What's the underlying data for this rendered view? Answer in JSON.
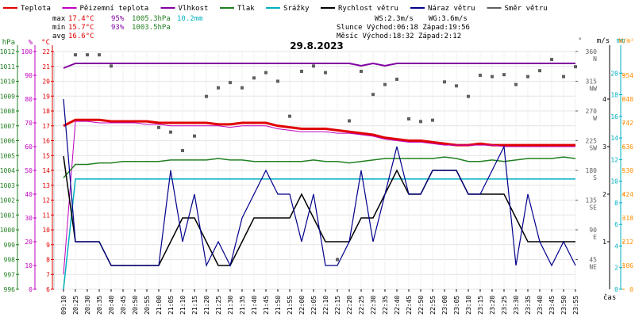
{
  "chart_data": {
    "type": "line",
    "title": "29.8.2023",
    "legend": [
      {
        "label": "Teplota",
        "color": "#e00000"
      },
      {
        "label": "Pěizemní teplota",
        "color": "#c000c0"
      },
      {
        "label": "Vlhkost",
        "color": "#8000a0"
      },
      {
        "label": "Tlak",
        "color": "#208020"
      },
      {
        "label": "Srážky",
        "color": "#00b0c0"
      },
      {
        "label": "Rychlost větru",
        "color": "#000000"
      },
      {
        "label": "Náraz větru",
        "color": "#00008b"
      },
      {
        "label": "Směr větru",
        "color": "#606060"
      }
    ],
    "stats": {
      "max": {
        "label": "max",
        "temp": "17.4°C",
        "hum": "95%",
        "press": "1005.3hPa",
        "rain": "10.2mm"
      },
      "min": {
        "label": "min",
        "temp": "15.7°C",
        "hum": "93%",
        "press": "1003.5hPa"
      },
      "avg": {
        "label": "avg",
        "temp": "16.6°C"
      },
      "ws": "WS:2.3m/s",
      "wg": "WG:3.6m/s",
      "sun": "Slunce Východ:06:18  Západ:19:56",
      "moon": "Měsíc  Východ:18:32  Západ:2:12"
    },
    "x_labels": [
      "09:10",
      "20:25",
      "20:30",
      "20:35",
      "20:40",
      "20:45",
      "20:50",
      "20:55",
      "21:00",
      "21:05",
      "21:10",
      "21:15",
      "21:20",
      "21:25",
      "21:30",
      "21:35",
      "21:40",
      "21:45",
      "21:50",
      "21:55",
      "22:00",
      "22:05",
      "22:10",
      "22:15",
      "22:20",
      "22:25",
      "22:30",
      "22:35",
      "22:40",
      "22:45",
      "22:50",
      "22:55",
      "23:00",
      "23:05",
      "23:10",
      "23:15",
      "23:20",
      "23:25",
      "23:30",
      "23:35",
      "23:40",
      "23:45",
      "23:50",
      "23:55"
    ],
    "x_axis_label": "čas",
    "axes": {
      "hpa": {
        "title": "hPa",
        "ticks": [
          "996",
          "997",
          "998",
          "999",
          "1000",
          "1001",
          "1002",
          "1003",
          "1004",
          "1005",
          "1006",
          "1007",
          "1008",
          "1009",
          "1010",
          "1011",
          "1012"
        ]
      },
      "pct": {
        "title": "%",
        "ticks": [
          "0",
          "10",
          "20",
          "30",
          "40",
          "50",
          "60",
          "70",
          "80",
          "90",
          "100"
        ]
      },
      "degc": {
        "title": "°C",
        "ticks": [
          "6",
          "7",
          "8",
          "9",
          "10",
          "11",
          "12",
          "13",
          "14",
          "15",
          "16",
          "17",
          "18",
          "19",
          "20",
          "21",
          "22"
        ]
      },
      "deg": {
        "title": "°",
        "ticks": [
          "45",
          "90",
          "135",
          "180",
          "225",
          "270",
          "315",
          "360"
        ]
      },
      "compass": [
        "NE",
        "E",
        "SE",
        "S",
        "SW",
        "W",
        "NW",
        "N"
      ],
      "ms": {
        "title": "m/s",
        "ticks": [
          "1",
          "2",
          "3",
          "4"
        ]
      },
      "mm": {
        "title": "mm",
        "ticks": [
          "0",
          "2",
          "4",
          "6",
          "8",
          "10",
          "12",
          "14",
          "16",
          "18",
          "20"
        ]
      },
      "wm2": {
        "title": "W/m²",
        "ticks": [
          "0",
          "106",
          "212",
          "318",
          "424",
          "530",
          "636",
          "742",
          "848",
          "954"
        ]
      }
    },
    "series": [
      {
        "name": "Teplota",
        "axis": "degc",
        "color": "#e00000",
        "values": [
          17.0,
          17.4,
          17.4,
          17.4,
          17.3,
          17.3,
          17.3,
          17.3,
          17.2,
          17.2,
          17.2,
          17.2,
          17.2,
          17.1,
          17.1,
          17.2,
          17.2,
          17.2,
          17.0,
          16.9,
          16.8,
          16.8,
          16.8,
          16.7,
          16.6,
          16.5,
          16.4,
          16.2,
          16.1,
          16.0,
          16.0,
          15.9,
          15.8,
          15.7,
          15.7,
          15.8,
          15.7,
          15.7,
          15.7,
          15.7,
          15.7,
          15.7,
          15.7,
          15.7
        ]
      },
      {
        "name": "Pěizemní teplota",
        "axis": "degc",
        "color": "#c000c0",
        "values": [
          7.0,
          17.3,
          17.3,
          17.2,
          17.2,
          17.2,
          17.2,
          17.1,
          17.1,
          17.0,
          17.0,
          17.0,
          17.0,
          17.0,
          16.9,
          17.0,
          17.0,
          17.0,
          16.8,
          16.7,
          16.6,
          16.6,
          16.6,
          16.5,
          16.5,
          16.4,
          16.3,
          16.1,
          16.0,
          15.9,
          15.9,
          15.8,
          15.7,
          15.7,
          15.7,
          15.7,
          15.7,
          15.6,
          15.6,
          15.6,
          15.6,
          15.6,
          15.6,
          15.6
        ]
      },
      {
        "name": "Vlhkost",
        "axis": "pct",
        "color": "#8000a0",
        "values": [
          93,
          95,
          95,
          95,
          95,
          95,
          95,
          95,
          95,
          95,
          95,
          95,
          95,
          95,
          95,
          95,
          95,
          95,
          95,
          95,
          95,
          95,
          95,
          95,
          95,
          94,
          95,
          94,
          95,
          95,
          95,
          95,
          95,
          95,
          95,
          95,
          95,
          95,
          95,
          95,
          95,
          95,
          95,
          95
        ]
      },
      {
        "name": "Tlak",
        "axis": "hpa",
        "color": "#208020",
        "values": [
          1003.5,
          1004.4,
          1004.4,
          1004.5,
          1004.5,
          1004.6,
          1004.6,
          1004.6,
          1004.6,
          1004.7,
          1004.7,
          1004.7,
          1004.7,
          1004.8,
          1004.7,
          1004.7,
          1004.6,
          1004.6,
          1004.6,
          1004.6,
          1004.6,
          1004.7,
          1004.6,
          1004.6,
          1004.5,
          1004.6,
          1004.7,
          1004.8,
          1004.8,
          1004.8,
          1004.8,
          1004.8,
          1004.9,
          1004.8,
          1004.6,
          1004.6,
          1004.7,
          1004.6,
          1004.7,
          1004.8,
          1004.8,
          1004.8,
          1004.9,
          1004.8
        ]
      },
      {
        "name": "Srážky",
        "axis": "mm",
        "color": "#00b0c0",
        "values": [
          0.0,
          10.2,
          10.2,
          10.2,
          10.2,
          10.2,
          10.2,
          10.2,
          10.2,
          10.2,
          10.2,
          10.2,
          10.2,
          10.2,
          10.2,
          10.2,
          10.2,
          10.2,
          10.2,
          10.2,
          10.2,
          10.2,
          10.2,
          10.2,
          10.2,
          10.2,
          10.2,
          10.2,
          10.2,
          10.2,
          10.2,
          10.2,
          10.2,
          10.2,
          10.2,
          10.2,
          10.2,
          10.2,
          10.2,
          10.2,
          10.2,
          10.2,
          10.2,
          10.2
        ]
      },
      {
        "name": "Rychlost větru",
        "axis": "ms",
        "color": "#000000",
        "values": [
          2.8,
          1.0,
          1.0,
          1.0,
          0.5,
          0.5,
          0.5,
          0.5,
          0.5,
          1.0,
          1.5,
          1.5,
          1.0,
          0.5,
          0.5,
          1.0,
          1.5,
          1.5,
          1.5,
          1.5,
          2.0,
          1.5,
          1.0,
          1.0,
          1.0,
          1.5,
          1.5,
          2.0,
          2.5,
          2.0,
          2.0,
          2.5,
          2.5,
          2.5,
          2.0,
          2.0,
          2.0,
          2.0,
          1.5,
          1.0,
          1.0,
          1.0,
          1.0,
          1.0
        ]
      },
      {
        "name": "Náraz větru",
        "axis": "ms",
        "color": "#00008b",
        "values": [
          4.0,
          1.0,
          1.0,
          1.0,
          0.5,
          0.5,
          0.5,
          0.5,
          0.5,
          2.5,
          1.0,
          2.0,
          0.5,
          1.0,
          0.5,
          1.5,
          2.0,
          2.5,
          2.0,
          2.0,
          1.0,
          2.0,
          0.5,
          0.5,
          1.0,
          2.5,
          1.0,
          2.0,
          3.0,
          2.0,
          2.0,
          2.5,
          2.5,
          2.5,
          2.0,
          2.0,
          2.5,
          3.0,
          0.5,
          2.0,
          1.0,
          0.5,
          1.0,
          0.5
        ]
      },
      {
        "name": "Směr větru",
        "axis": "deg",
        "color": "#606060",
        "values": [
          null,
          355,
          355,
          355,
          338,
          null,
          null,
          null,
          245,
          238,
          210,
          232,
          292,
          305,
          313,
          305,
          320,
          328,
          315,
          262,
          330,
          338,
          328,
          45,
          255,
          330,
          295,
          310,
          318,
          258,
          254,
          256,
          314,
          308,
          292,
          324,
          322,
          325,
          310,
          322,
          331,
          348,
          322,
          337
        ]
      }
    ]
  }
}
